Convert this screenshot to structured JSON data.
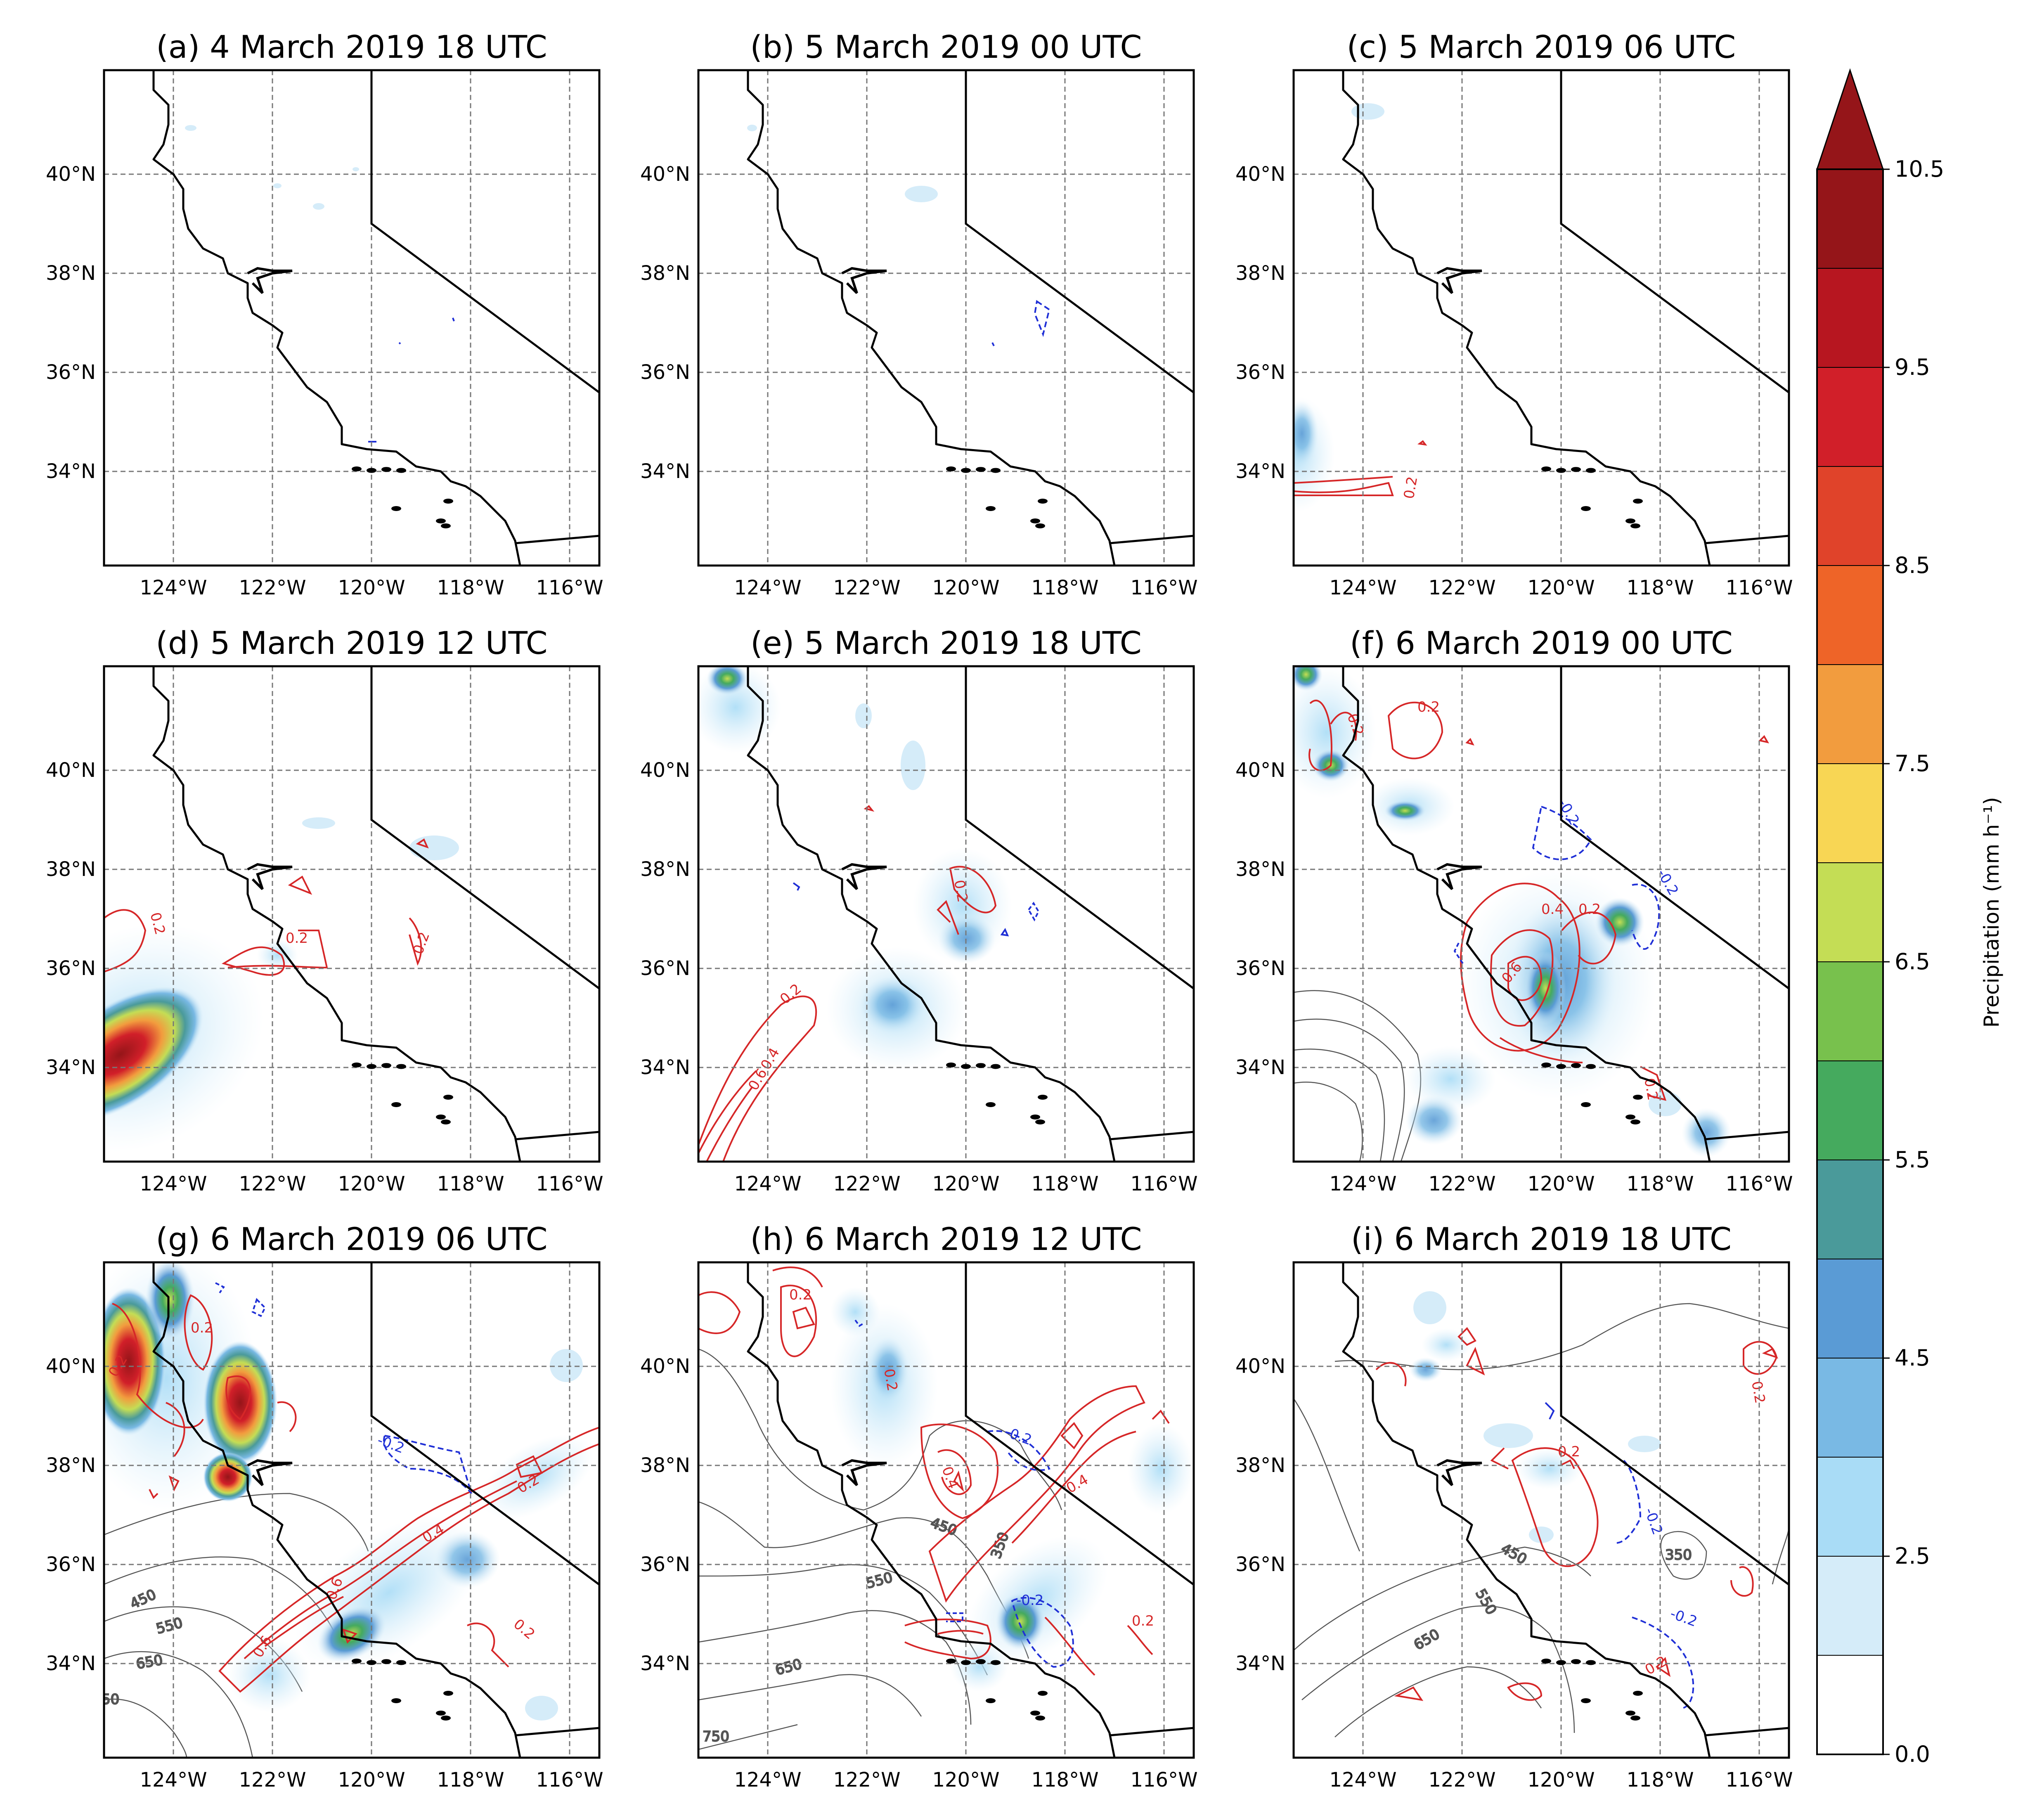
{
  "panels": [
    {
      "title": "(a) 4 March 2019 18 UTC"
    },
    {
      "title": "(b) 5 March 2019 00 UTC"
    },
    {
      "title": "(c) 5 March 2019 06 UTC"
    },
    {
      "title": "(d) 5 March 2019 12 UTC"
    },
    {
      "title": "(e) 5 March 2019 18 UTC"
    },
    {
      "title": "(f) 6 March 2019 00 UTC"
    },
    {
      "title": "(g) 6 March 2019 06 UTC"
    },
    {
      "title": "(h) 6 March 2019 12 UTC"
    },
    {
      "title": "(i) 6 March 2019 18 UTC"
    }
  ],
  "lat_labels": [
    "40°N",
    "38°N",
    "36°N",
    "34°N"
  ],
  "lon_labels": [
    "124°W",
    "122°W",
    "120°W",
    "118°W",
    "116°W"
  ],
  "colorbar": {
    "label": "Precipitation (mm h⁻¹)",
    "tick_labels": [
      "0.0",
      "2.5",
      "4.5",
      "5.5",
      "6.5",
      "7.5",
      "8.5",
      "9.5",
      "10.5"
    ],
    "colors": [
      "#ffffff",
      "#d5ecf9",
      "#a9dcf6",
      "#79b9e4",
      "#5a9bd5",
      "#4a9a9a",
      "#45aa5e",
      "#78c14d",
      "#c4dd55",
      "#f8d654",
      "#f29c3e",
      "#ee6428",
      "#e0432a",
      "#d11f29",
      "#b71620",
      "#951519"
    ],
    "extend": "max"
  },
  "contour_colors": {
    "positive": "#d62728",
    "negative": "#1f2fd6",
    "background": "#555555"
  },
  "contour_labels": {
    "c": [
      "0.2"
    ],
    "d": [
      "0.2",
      "0.2",
      "0.2"
    ],
    "e": [
      "0.2",
      "0.2",
      "0.4",
      "0.6"
    ],
    "f": [
      "0.2",
      "0.2",
      "0.4",
      "0.2",
      "0.6",
      "-0.2",
      "-0.2",
      "0.2"
    ],
    "g": [
      "0.2",
      "0.2",
      "0.2",
      "0.4",
      "0.6",
      "0.6",
      "0.2",
      "-0.2",
      "450",
      "550",
      "650",
      "50"
    ],
    "h": [
      "0.2",
      "0.2",
      "0.4",
      "0.4",
      "0.2",
      "-0.2",
      "-0.2",
      "450",
      "550",
      "650",
      "750",
      "350"
    ],
    "i": [
      "0.2",
      "0.2",
      "-0.2",
      "-0.2",
      "0.2",
      "450",
      "550",
      "650",
      "350"
    ]
  }
}
